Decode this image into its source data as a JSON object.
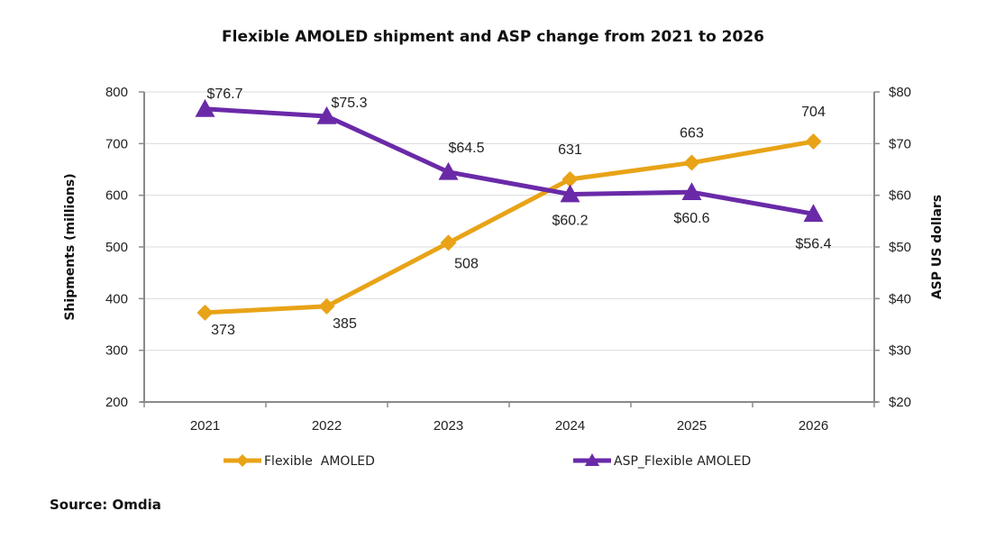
{
  "chart_data": {
    "type": "line",
    "title": "Flexible AMOLED shipment and ASP change from 2021 to 2026",
    "categories": [
      "2021",
      "2022",
      "2023",
      "2024",
      "2025",
      "2026"
    ],
    "xlabel": "",
    "ylabel": "Shipments (millions)",
    "y2label": "ASP US dollars",
    "ylim": [
      200,
      800
    ],
    "y2lim": [
      20,
      80
    ],
    "yticks": [
      200,
      300,
      400,
      500,
      600,
      700,
      800
    ],
    "y2ticks": [
      "$20",
      "$30",
      "$40",
      "$50",
      "$60",
      "$70",
      "$80"
    ],
    "y2tick_values": [
      20,
      30,
      40,
      50,
      60,
      70,
      80
    ],
    "grid": true,
    "legend_position": "bottom",
    "series": [
      {
        "name": "Flexible  AMOLED",
        "axis": "left",
        "color": "#E8A317",
        "marker": "diamond",
        "values": [
          373,
          385,
          508,
          631,
          663,
          704
        ],
        "labels": [
          "373",
          "385",
          "508",
          "631",
          "663",
          "704"
        ]
      },
      {
        "name": "ASP_Flexible AMOLED",
        "axis": "right",
        "color": "#6A2AA8",
        "marker": "triangle",
        "values": [
          76.7,
          75.3,
          64.5,
          60.2,
          60.6,
          56.4
        ],
        "labels": [
          "$76.7",
          "$75.3",
          "$64.5",
          "$60.2",
          "$60.6",
          "$56.4"
        ]
      }
    ]
  },
  "source": "Source: Omdia"
}
